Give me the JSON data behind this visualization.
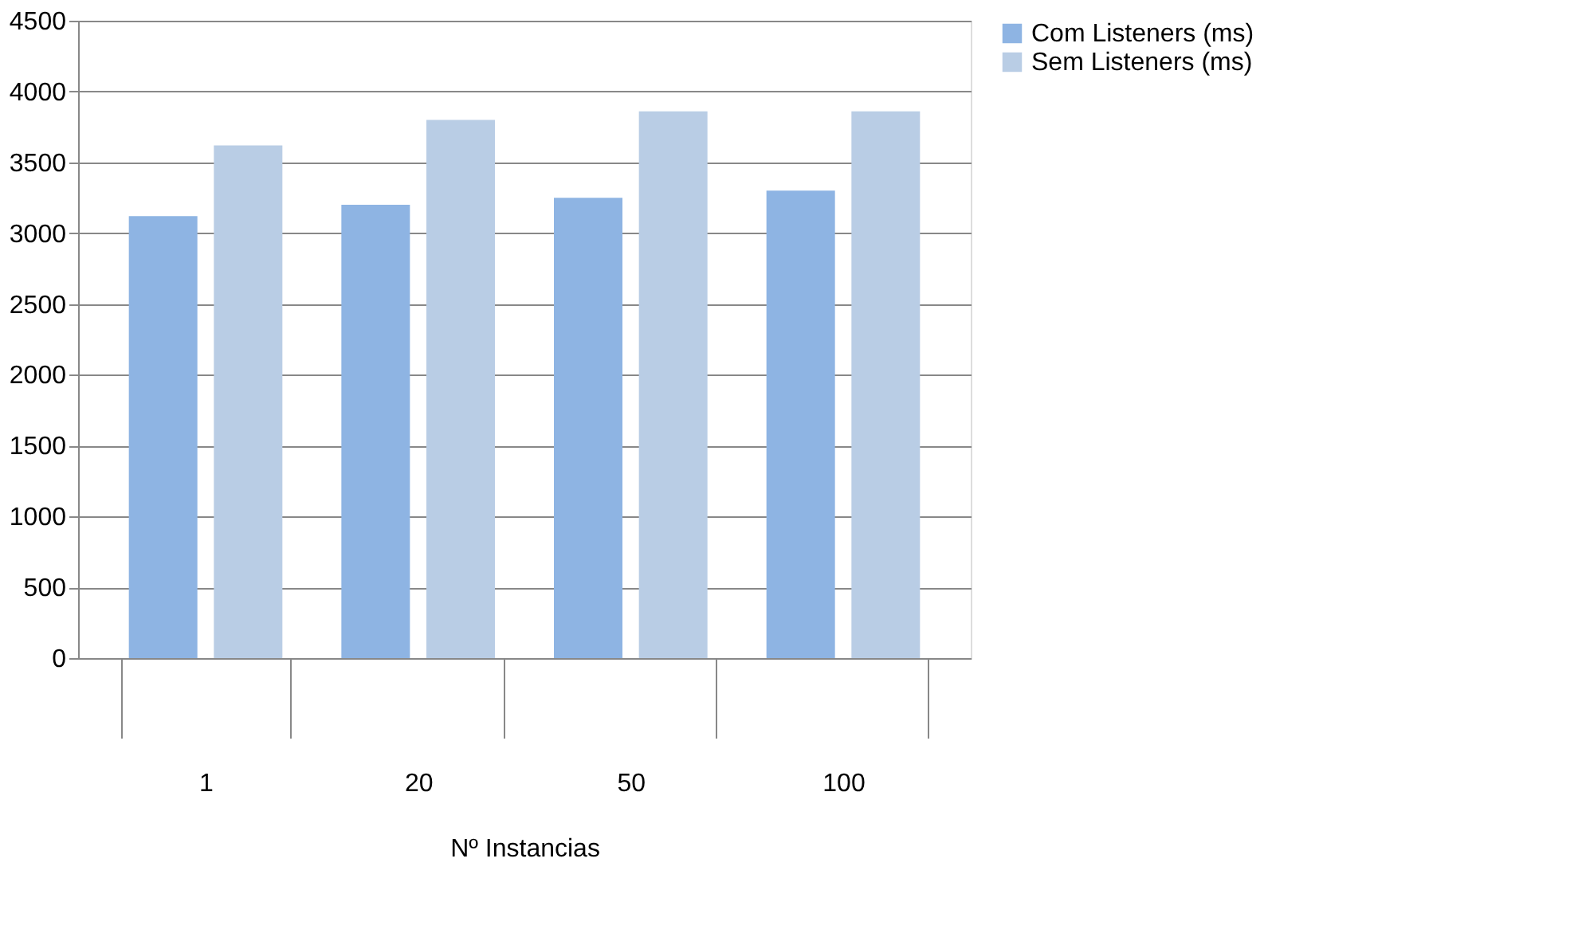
{
  "chart_data": {
    "type": "bar",
    "categories": [
      "1",
      "20",
      "50",
      "100"
    ],
    "xlabel": "Nº Instancias",
    "series": [
      {
        "name": "Com Listeners (ms)",
        "color": "#8eb4e3",
        "values": [
          3120,
          3200,
          3250,
          3300
        ]
      },
      {
        "name": "Sem Listeners (ms)",
        "color": "#b9cde5",
        "values": [
          3620,
          3800,
          3860,
          3860
        ]
      }
    ],
    "ylim": [
      0,
      4500
    ],
    "yticks": [
      0,
      500,
      1000,
      1500,
      2000,
      2500,
      3000,
      3500,
      4000,
      4500
    ],
    "grid": "y",
    "legend": "right"
  }
}
